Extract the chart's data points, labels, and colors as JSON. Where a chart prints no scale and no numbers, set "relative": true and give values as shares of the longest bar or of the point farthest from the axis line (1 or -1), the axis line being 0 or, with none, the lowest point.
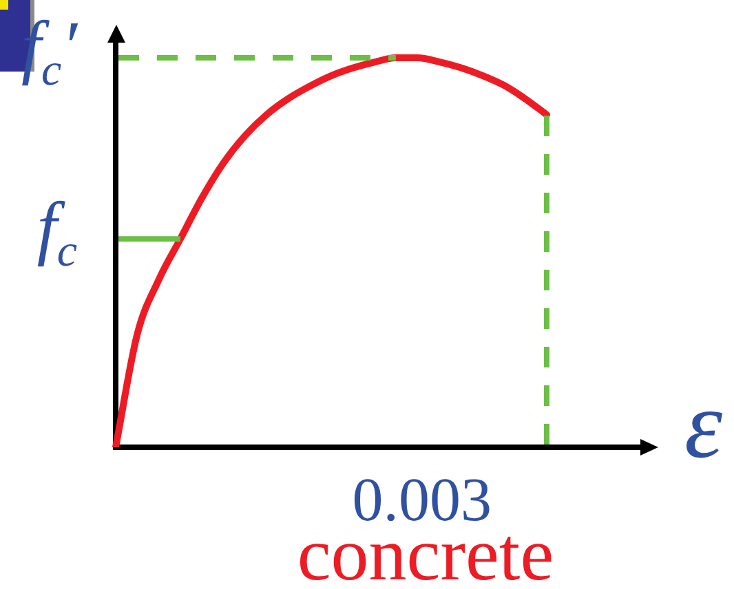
{
  "chart_data": {
    "type": "line",
    "title": "concrete",
    "xlabel": "ε",
    "categories": [
      null,
      null,
      null,
      null,
      null,
      null,
      null,
      null,
      null,
      null,
      null,
      null,
      null,
      null,
      null,
      null,
      null,
      null,
      null,
      null,
      null
    ],
    "series": [
      {
        "color": "#ed1c24",
        "values": [
          0,
          0.29,
          0.43,
          0.535,
          0.64,
          0.73,
          0.8,
          0.854,
          0.895,
          0.927,
          0.954,
          0.974,
          0.989,
          1,
          1,
          0.99,
          0.975,
          0.955,
          0.93,
          0.895,
          0.854
        ]
      }
    ],
    "relative": true,
    "marker": "none",
    "ref_lines": [
      {
        "axis": "y",
        "value": 1,
        "label": "f$_{c}$′",
        "color": "#6cbf45",
        "line_style": "dashed"
      },
      {
        "axis": "y",
        "value": 0.535,
        "label": "f$_{c}$",
        "color": "#6cbf45",
        "line_style": "solid"
      }
    ],
    "annotations": [
      "0.003"
    ]
  }
}
